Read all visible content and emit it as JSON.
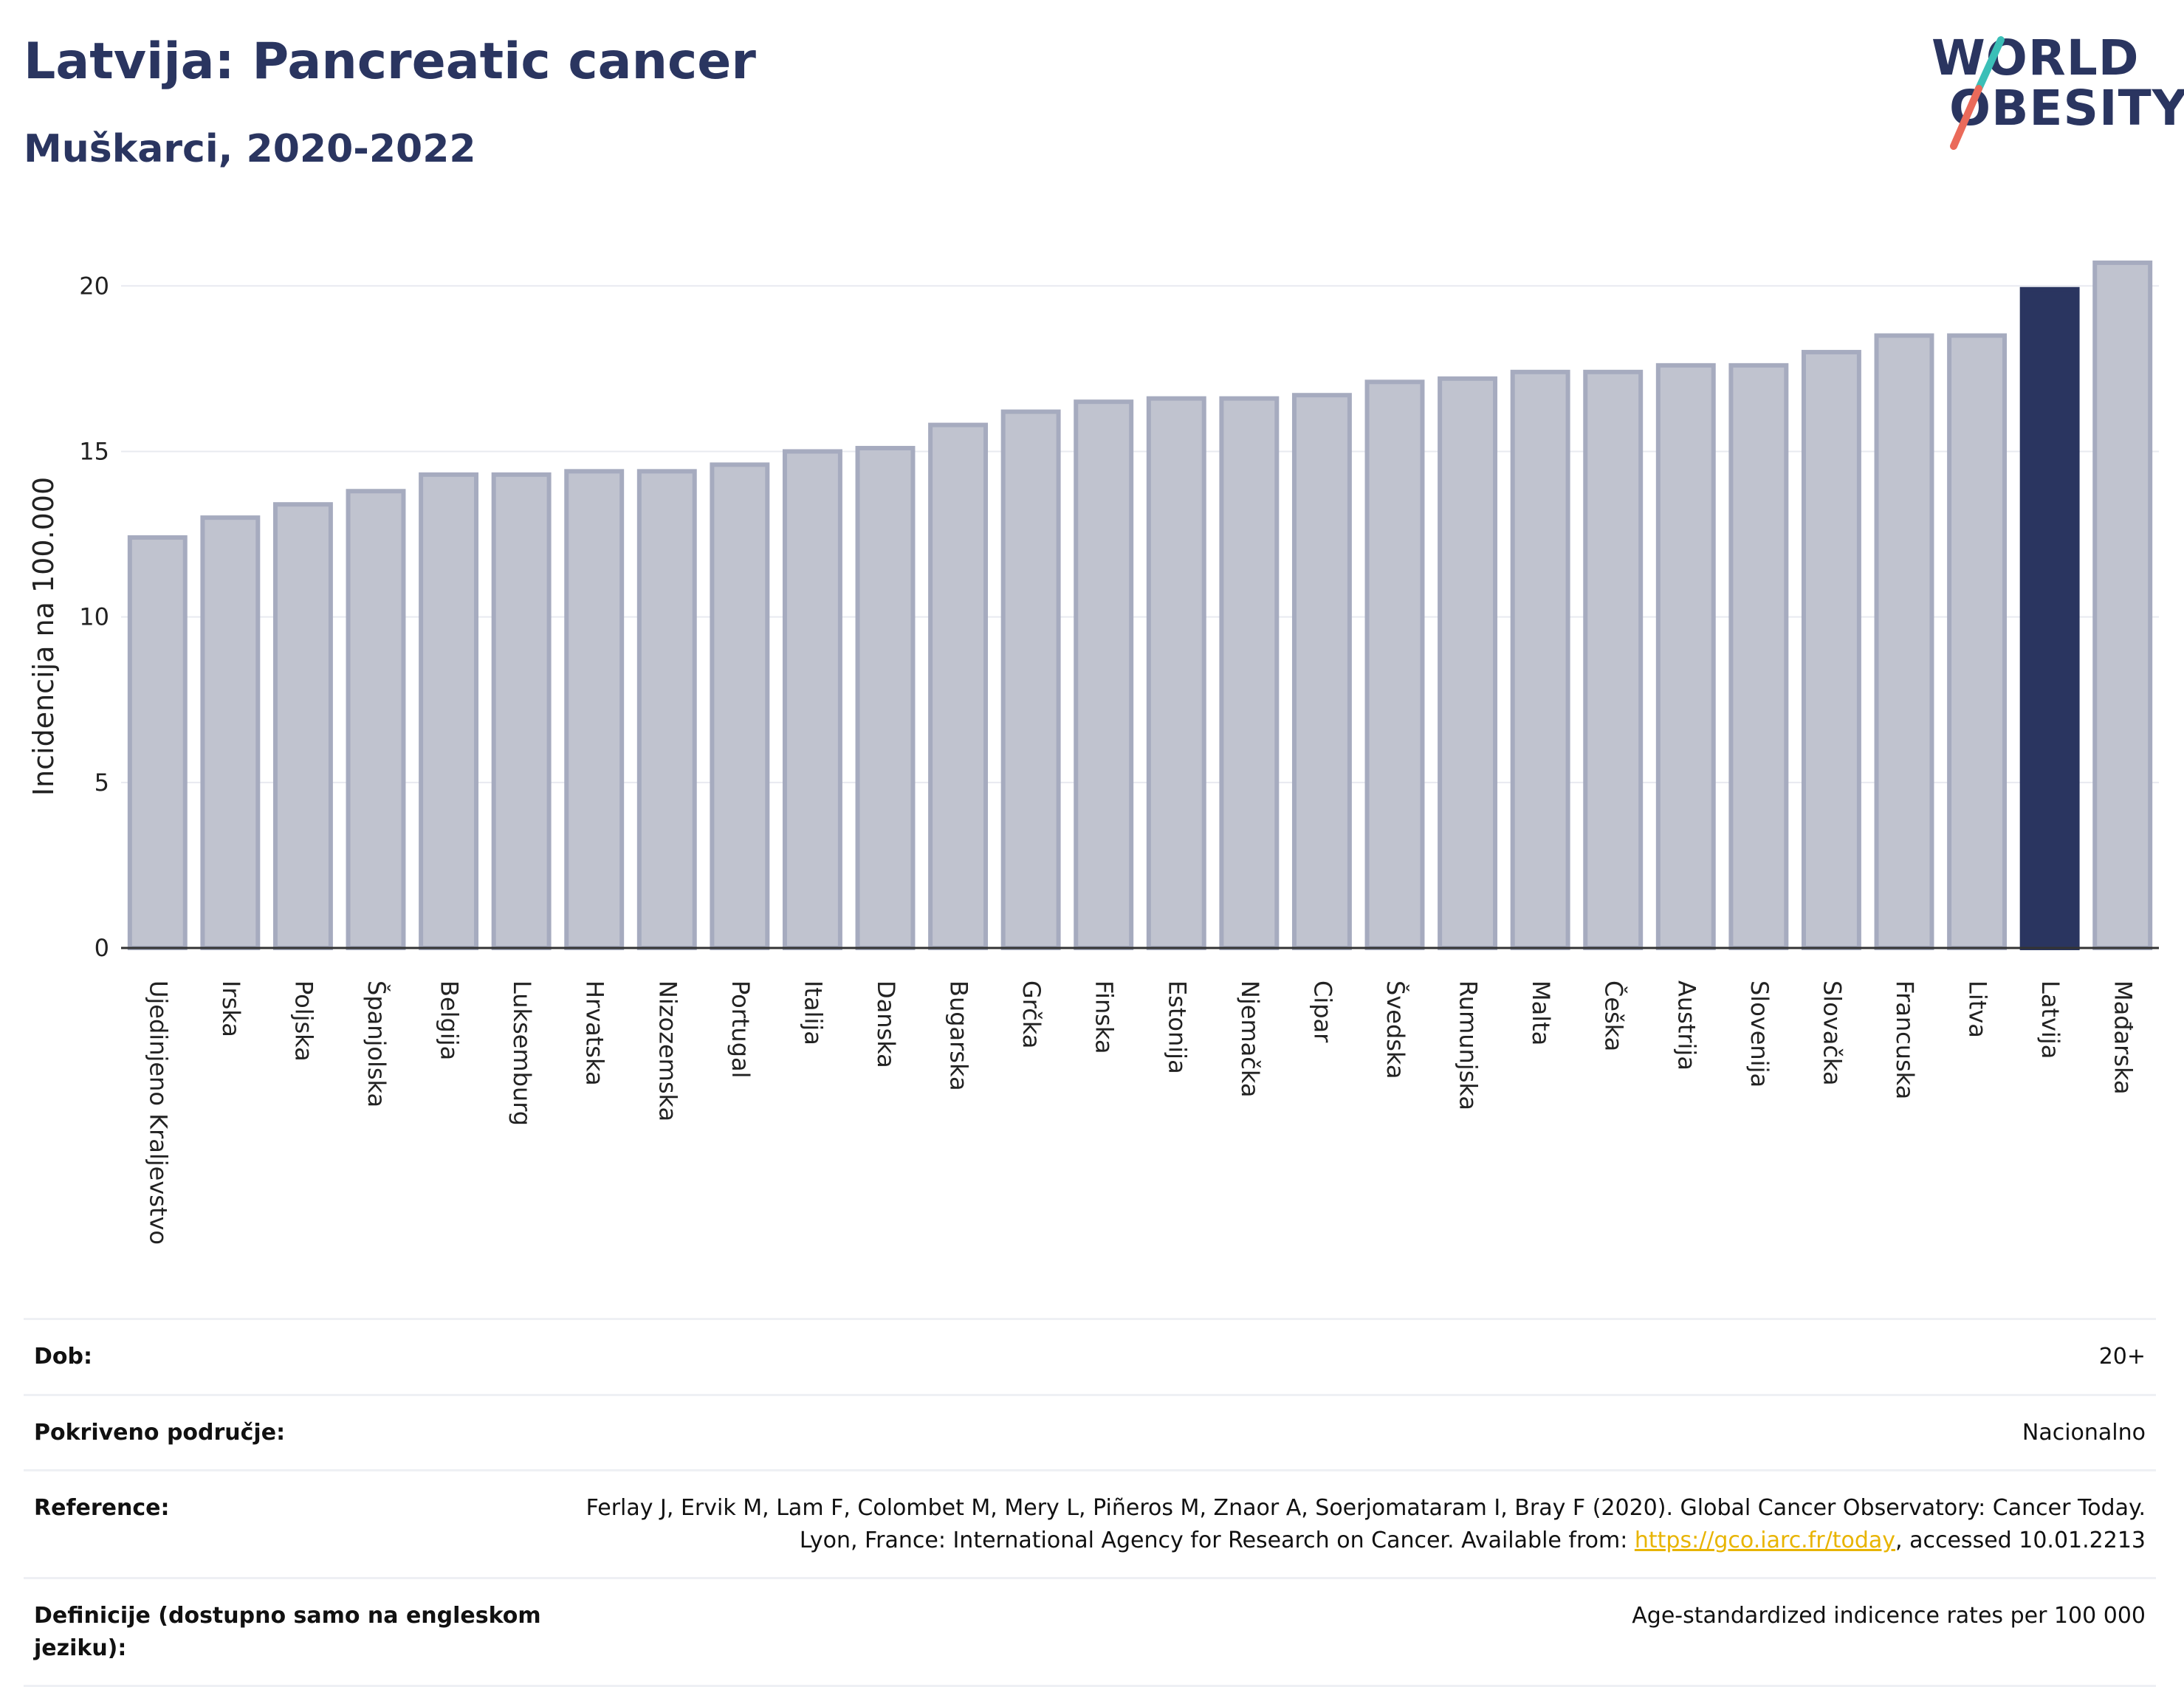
{
  "header": {
    "title": "Latvija: Pancreatic cancer",
    "subtitle": "Muškarci, 2020-2022"
  },
  "logo": {
    "line1": "WORLD",
    "line2": "OBESITY",
    "colors": {
      "text": "#2a3560",
      "teal": "#3bbfb7",
      "coral": "#ea6a5a"
    }
  },
  "chart_data": {
    "type": "bar",
    "ylabel": "Incidencija na 100.000",
    "ylim": [
      0,
      21.5
    ],
    "yticks": [
      0,
      5,
      10,
      15,
      20
    ],
    "grid": true,
    "highlight": "Latvija",
    "colors": {
      "bar": "#c0c3cf",
      "bar_edge": "#a6abbf",
      "highlight": "#2a3560"
    },
    "categories": [
      "Ujedinjeno Kraljevstvo",
      "Irska",
      "Poljska",
      "Španjolska",
      "Belgija",
      "Luksemburg",
      "Hrvatska",
      "Nizozemska",
      "Portugal",
      "Italija",
      "Danska",
      "Bugarska",
      "Grčka",
      "Finska",
      "Estonija",
      "Njemačka",
      "Cipar",
      "Švedska",
      "Rumunjska",
      "Malta",
      "Češka",
      "Austrija",
      "Slovenija",
      "Slovačka",
      "Francuska",
      "Litva",
      "Latvija",
      "Mađarska"
    ],
    "values": [
      12.4,
      13.0,
      13.4,
      13.8,
      14.3,
      14.3,
      14.4,
      14.4,
      14.6,
      15.0,
      15.1,
      15.8,
      16.2,
      16.5,
      16.6,
      16.6,
      16.7,
      17.1,
      17.2,
      17.4,
      17.4,
      17.6,
      17.6,
      18.0,
      18.5,
      18.5,
      19.9,
      20.7
    ]
  },
  "meta": [
    {
      "key": "Dob:",
      "value": "20+"
    },
    {
      "key": "Pokriveno područje:",
      "value": "Nacionalno"
    },
    {
      "key": "Reference:",
      "value_before": "Ferlay J, Ervik M, Lam F, Colombet M, Mery L, Piñeros M, Znaor A, Soerjomataram I, Bray F (2020). Global Cancer Observatory: Cancer Today. Lyon, France: International Agency for Research on Cancer. Available from: ",
      "link": "https://gco.iarc.fr/today",
      "value_after": ", accessed 10.01.2213"
    },
    {
      "key": "Definicije (dostupno samo na engleskom jeziku):",
      "value": "Age-standardized indicence rates per 100 000"
    }
  ]
}
